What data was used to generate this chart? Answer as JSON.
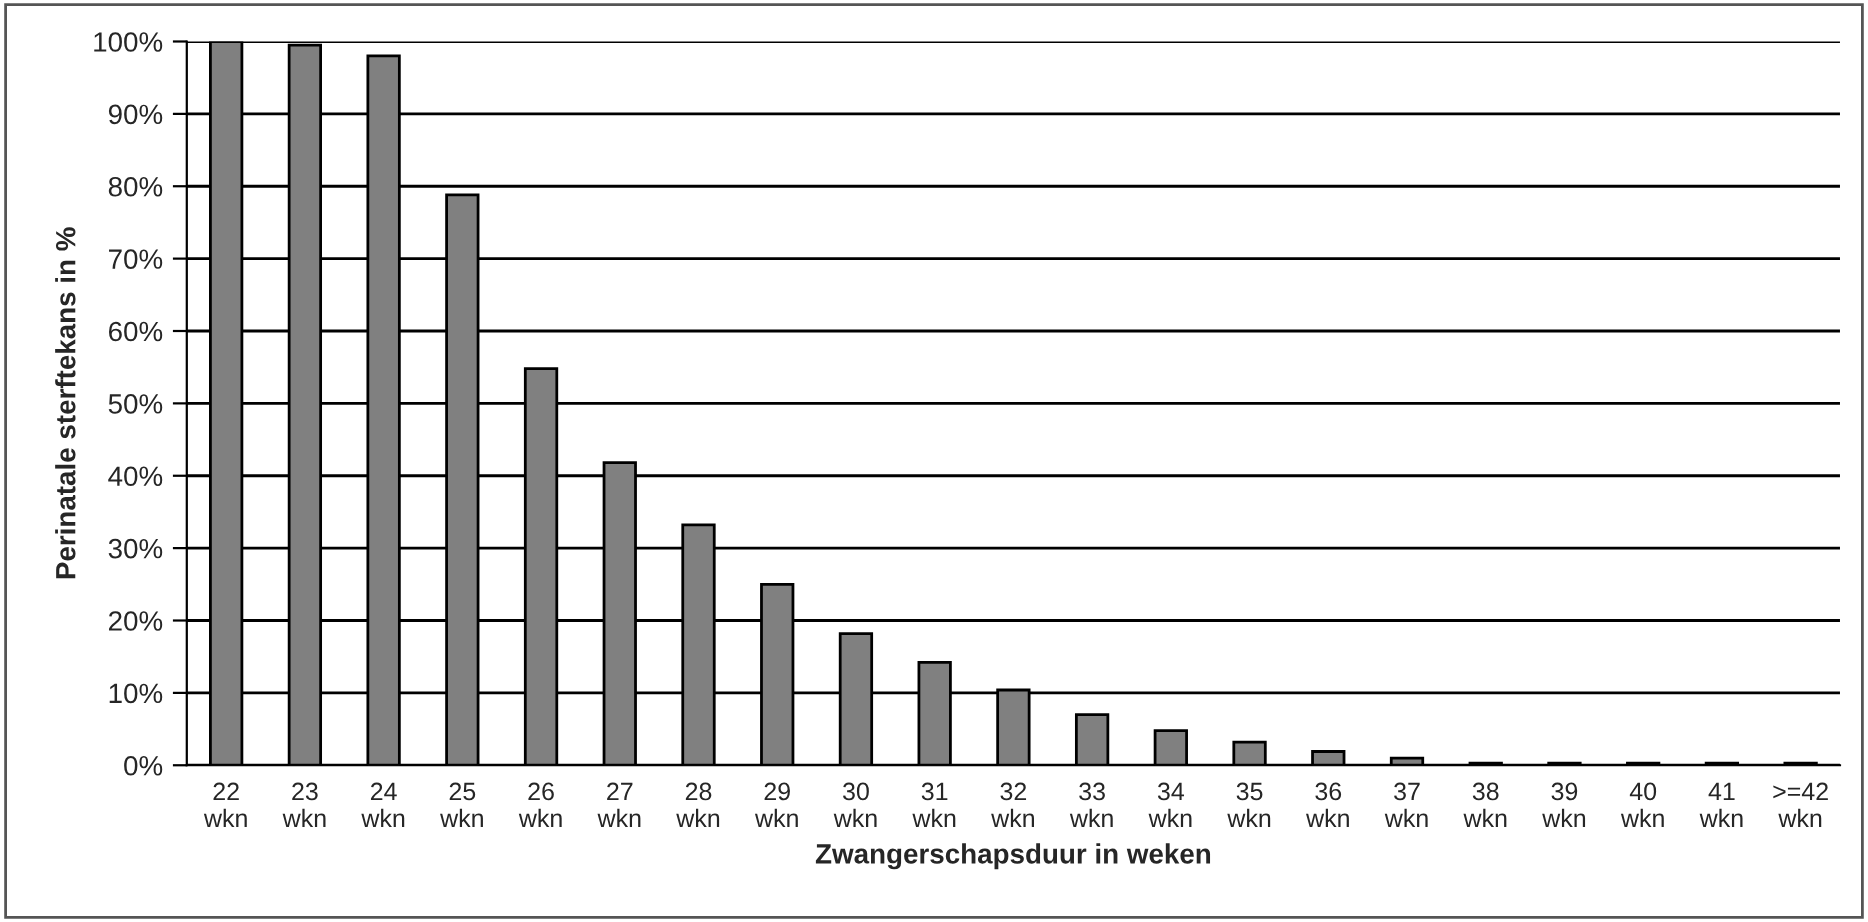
{
  "chart_data": {
    "type": "bar",
    "xlabel": "Zwangerschapsduur in weken",
    "ylabel": "Perinatale sterftekans in %",
    "categories": [
      "22\nwkn",
      "23\nwkn",
      "24\nwkn",
      "25\nwkn",
      "26\nwkn",
      "27\nwkn",
      "28\nwkn",
      "29\nwkn",
      "30\nwkn",
      "31\nwkn",
      "32\nwkn",
      "33\nwkn",
      "34\nwkn",
      "35\nwkn",
      "36\nwkn",
      "37\nwkn",
      "38\nwkn",
      "39\nwkn",
      "40\nwkn",
      "41\nwkn",
      ">=42\nwkn"
    ],
    "values": [
      100,
      99.5,
      98,
      78.8,
      54.8,
      41.8,
      33.2,
      25,
      18.2,
      14.2,
      10.4,
      7.0,
      4.8,
      3.2,
      1.9,
      1.0,
      0.3,
      0.3,
      0.3,
      0.3,
      0.3
    ],
    "color": "#808080",
    "ylim": [
      0,
      100
    ],
    "yticks": [
      {
        "value": 0,
        "label": "0%"
      },
      {
        "value": 10,
        "label": "10%"
      },
      {
        "value": 20,
        "label": "20%"
      },
      {
        "value": 30,
        "label": "30%"
      },
      {
        "value": 40,
        "label": "40%"
      },
      {
        "value": 50,
        "label": "50%"
      },
      {
        "value": 60,
        "label": "60%"
      },
      {
        "value": 70,
        "label": "70%"
      },
      {
        "value": 80,
        "label": "80%"
      },
      {
        "value": 90,
        "label": "90%"
      },
      {
        "value": 100,
        "label": "100%"
      }
    ],
    "grid": "y",
    "legend": false
  }
}
